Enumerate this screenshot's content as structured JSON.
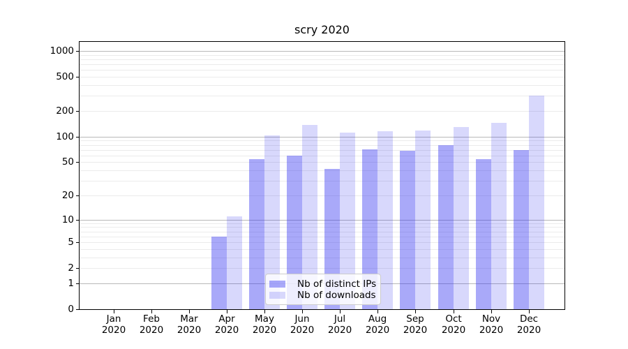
{
  "title": "scry 2020",
  "chart_data": {
    "type": "bar",
    "x_months": [
      "Jan",
      "Feb",
      "Mar",
      "Apr",
      "May",
      "Jun",
      "Jul",
      "Aug",
      "Sep",
      "Oct",
      "Nov",
      "Dec"
    ],
    "x_year": "2020",
    "y_tick_labels": [
      "0",
      "1",
      "2",
      "5",
      "10",
      "20",
      "50",
      "100",
      "200",
      "500",
      "1000"
    ],
    "yscale": "log10(value+1)",
    "ylim": [
      0,
      1285
    ],
    "grid": "on",
    "legend_position": "lower center",
    "series": [
      {
        "name": "Nb of distinct IPs",
        "color": "rgba(50,50,240,0.42)",
        "values": [
          0,
          0,
          0,
          6,
          54,
          60,
          42,
          71,
          68,
          80,
          54,
          70
        ]
      },
      {
        "name": "Nb of downloads",
        "color": "rgba(50,50,240,0.19)",
        "values": [
          0,
          0,
          0,
          11,
          103,
          138,
          112,
          117,
          119,
          131,
          146,
          300
        ]
      }
    ]
  },
  "colors": {
    "grid_major": "#b8b8b8",
    "grid_minor": "#ebebeb",
    "spine": "#000000",
    "legend_border": "#cccccc",
    "text": "#000000"
  }
}
